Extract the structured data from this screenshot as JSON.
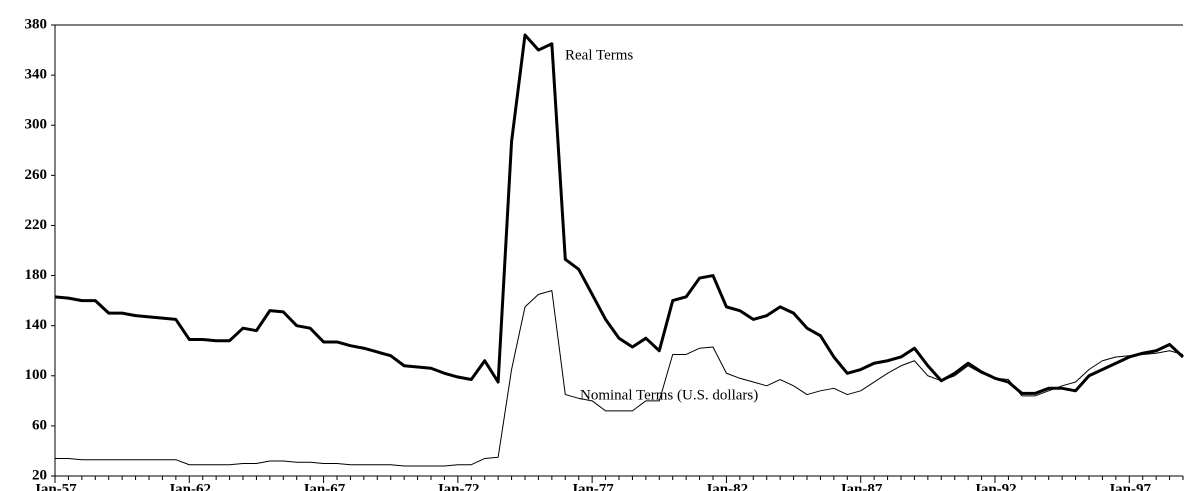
{
  "chart_data": {
    "type": "line",
    "categories": [
      "Jan-57",
      null,
      null,
      null,
      null,
      null,
      null,
      null,
      null,
      null,
      "Jan-62",
      null,
      null,
      null,
      null,
      null,
      null,
      null,
      null,
      null,
      "Jan-67",
      null,
      null,
      null,
      null,
      null,
      null,
      null,
      null,
      null,
      "Jan-72",
      null,
      null,
      null,
      null,
      null,
      null,
      null,
      null,
      null,
      "Jan-77",
      null,
      null,
      null,
      null,
      null,
      null,
      null,
      null,
      null,
      "Jan-82",
      null,
      null,
      null,
      null,
      null,
      null,
      null,
      null,
      null,
      "Jan-87",
      null,
      null,
      null,
      null,
      null,
      null,
      null,
      null,
      null,
      "Jan-92",
      null,
      null,
      null,
      null,
      null,
      null,
      null,
      null,
      null,
      "Jan-97",
      null,
      null,
      null,
      null
    ],
    "series": [
      {
        "name": "Real Terms",
        "color": "#000000",
        "width": 3,
        "values": [
          163,
          162,
          160,
          160,
          150,
          150,
          148,
          147,
          146,
          145,
          129,
          129,
          128,
          128,
          138,
          136,
          152,
          151,
          140,
          138,
          127,
          127,
          124,
          122,
          119,
          116,
          108,
          107,
          106,
          102,
          99,
          97,
          112,
          95,
          287,
          372,
          360,
          365,
          193,
          185,
          165,
          145,
          130,
          123,
          130,
          120,
          160,
          163,
          178,
          180,
          155,
          152,
          145,
          148,
          155,
          150,
          138,
          132,
          115,
          102,
          105,
          110,
          112,
          115,
          122,
          108,
          96,
          102,
          110,
          103,
          98,
          95,
          86,
          86,
          90,
          90,
          88,
          100,
          105,
          110,
          115,
          118,
          120,
          125,
          115
        ]
      },
      {
        "name": "Nominal Terms (U.S. dollars)",
        "color": "#000000",
        "width": 1,
        "values": [
          34,
          34,
          33,
          33,
          33,
          33,
          33,
          33,
          33,
          33,
          29,
          29,
          29,
          29,
          30,
          30,
          32,
          32,
          31,
          31,
          30,
          30,
          29,
          29,
          29,
          29,
          28,
          28,
          28,
          28,
          29,
          29,
          34,
          35,
          105,
          155,
          165,
          168,
          85,
          82,
          80,
          72,
          72,
          72,
          80,
          80,
          117,
          117,
          122,
          123,
          102,
          98,
          95,
          92,
          97,
          92,
          85,
          88,
          90,
          85,
          88,
          95,
          102,
          108,
          112,
          100,
          96,
          100,
          108,
          102,
          98,
          97,
          84,
          84,
          88,
          92,
          95,
          105,
          112,
          115,
          116,
          117,
          118,
          120,
          117
        ]
      }
    ],
    "ylim": [
      20,
      380
    ],
    "yticks": [
      20,
      60,
      100,
      140,
      180,
      220,
      260,
      300,
      340,
      380
    ],
    "grid": false
  }
}
